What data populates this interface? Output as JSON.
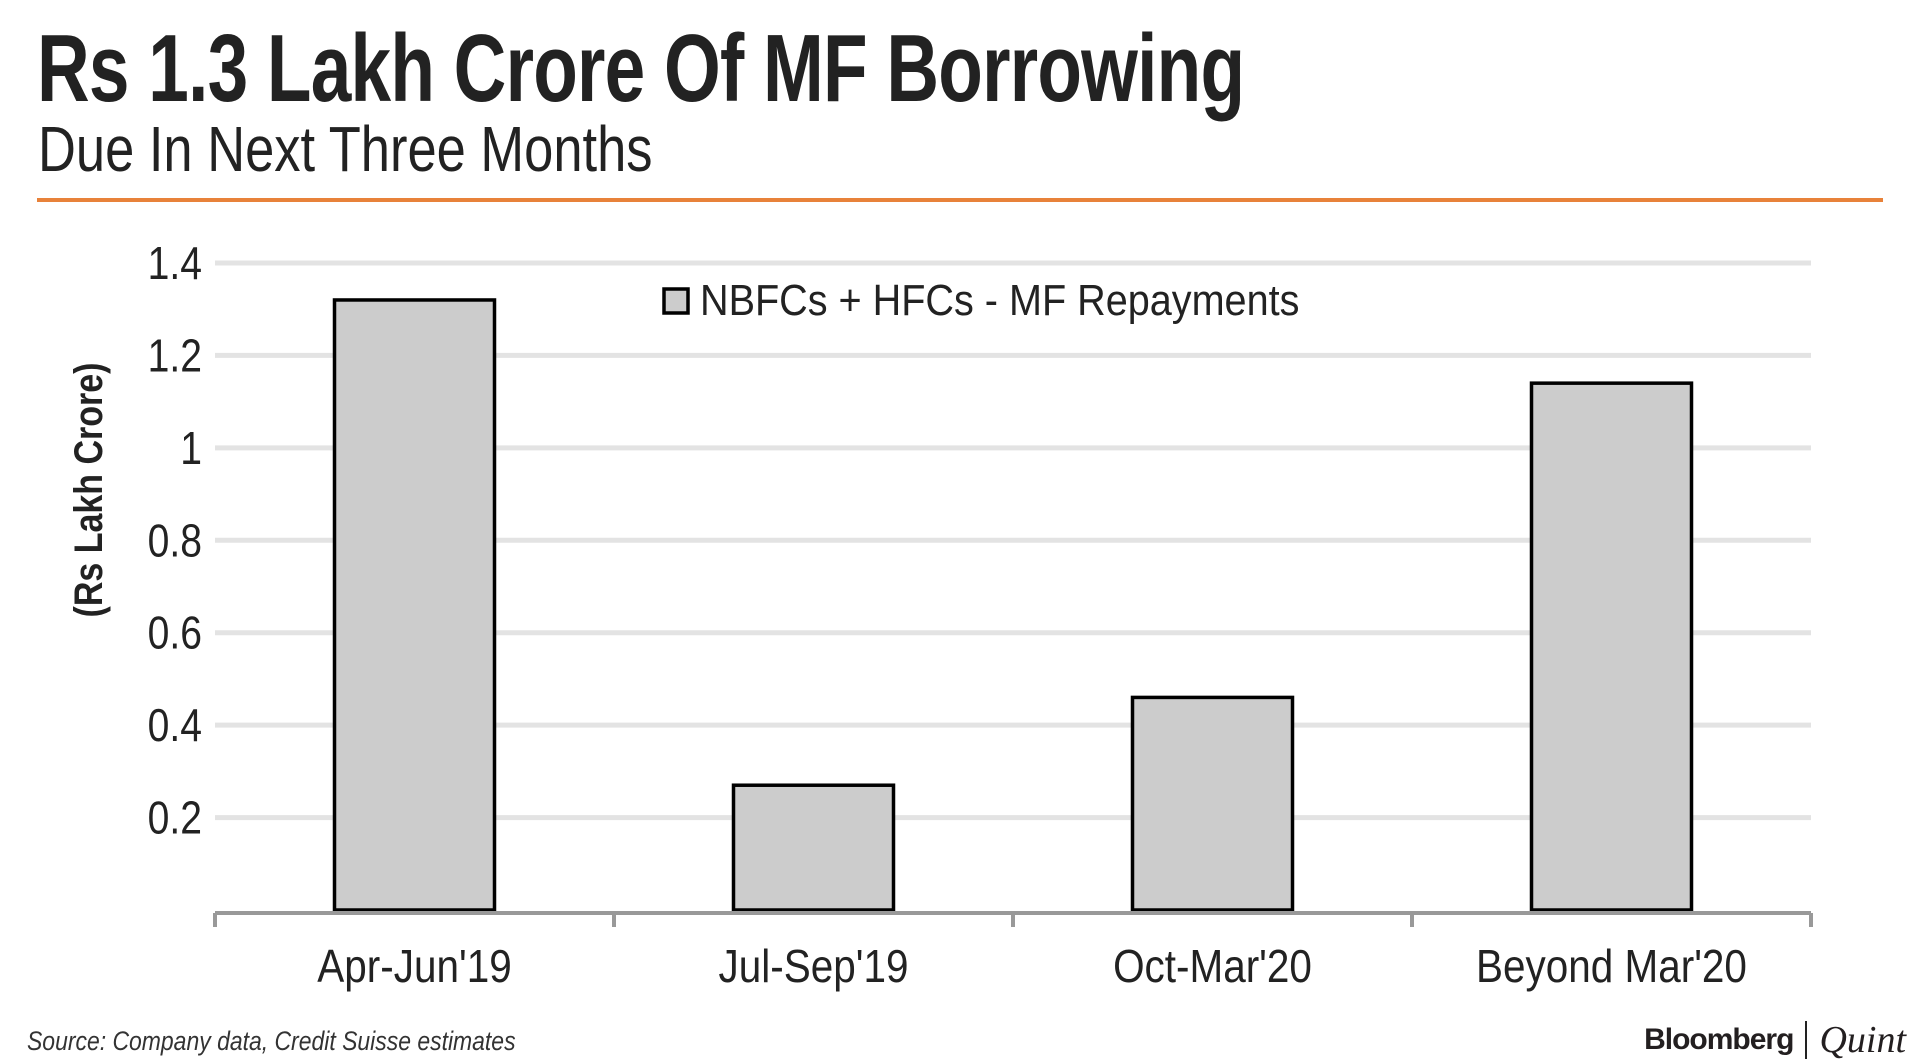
{
  "header": {
    "title": "Rs 1.3 Lakh Crore Of MF Borrowing",
    "subtitle": "Due In Next Three Months"
  },
  "footer": {
    "source": "Source: Company data, Credit Suisse estimates",
    "logo_primary": "Bloomberg",
    "logo_secondary": "Quint"
  },
  "colors": {
    "accent": "#e8823a",
    "bar_fill": "#cccccc",
    "bar_stroke": "#000000",
    "grid": "#e3e3e3"
  },
  "chart_data": {
    "type": "bar",
    "title": "Rs 1.3 Lakh Crore Of MF Borrowing",
    "subtitle": "Due In Next Three Months",
    "categories": [
      "Apr-Jun'19",
      "Jul-Sep'19",
      "Oct-Mar'20",
      "Beyond Mar'20"
    ],
    "series": [
      {
        "name": "NBFCs + HFCs - MF Repayments",
        "values": [
          1.32,
          0.27,
          0.46,
          1.14
        ]
      }
    ],
    "xlabel": "",
    "ylabel": "(Rs Lakh Crore)",
    "ylim": [
      0,
      1.4
    ],
    "yticks": [
      "0.2",
      "0.4",
      "0.6",
      "0.8",
      "1",
      "1.2",
      "1.4"
    ],
    "grid": true,
    "legend": "top-center"
  }
}
